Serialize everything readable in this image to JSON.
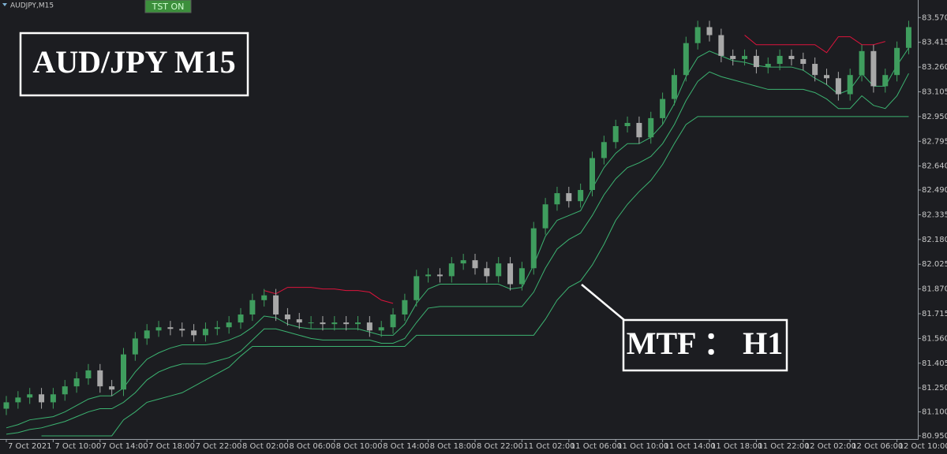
{
  "chart_data": {
    "type": "candlestick",
    "title": "AUDJPY,M15",
    "button": "TST ON",
    "annotations": [
      {
        "text": "AUD/JPY M15"
      },
      {
        "text": "MTF ： H1"
      }
    ],
    "up_color": "#3f9d5e",
    "down_color": "#a8a8a8",
    "categories": [
      "7 Oct 2021",
      null,
      null,
      null,
      "7 Oct 10:00",
      null,
      null,
      null,
      "7 Oct 14:00",
      null,
      null,
      null,
      "7 Oct 18:00",
      null,
      null,
      null,
      "7 Oct 22:00",
      null,
      null,
      null,
      "8 Oct 02:00",
      null,
      null,
      null,
      "8 Oct 06:00",
      null,
      null,
      null,
      "8 Oct 10:00",
      null,
      null,
      null,
      "8 Oct 14:00",
      null,
      null,
      null,
      "8 Oct 18:00",
      null,
      null,
      null,
      "8 Oct 22:00",
      null,
      null,
      null,
      "11 Oct 02:00",
      null,
      null,
      null,
      "11 Oct 06:00",
      null,
      null,
      null,
      "11 Oct 10:00",
      null,
      null,
      null,
      "11 Oct 14:00",
      null,
      null,
      null,
      "11 Oct 18:00",
      null,
      null,
      null,
      "11 Oct 22:00",
      null,
      null,
      null,
      "12 Oct 02:00",
      null,
      null,
      null,
      "12 Oct 06:00",
      null,
      null,
      null,
      "12 Oct 10:00",
      null
    ],
    "open": [
      81.12,
      81.16,
      81.19,
      81.21,
      81.16,
      81.21,
      81.26,
      81.31,
      81.36,
      81.26,
      81.24,
      81.46,
      81.56,
      81.61,
      81.63,
      81.62,
      81.61,
      81.58,
      81.62,
      81.63,
      81.66,
      81.71,
      81.8,
      81.83,
      81.71,
      81.68,
      81.66,
      81.66,
      81.65,
      81.66,
      81.65,
      81.66,
      81.61,
      81.63,
      81.71,
      81.8,
      81.95,
      81.96,
      81.95,
      82.03,
      82.05,
      82.0,
      81.95,
      82.03,
      81.9,
      82.0,
      82.25,
      82.4,
      82.47,
      82.42,
      82.49,
      82.69,
      82.79,
      82.89,
      82.91,
      82.82,
      82.94,
      83.06,
      83.21,
      83.41,
      83.51,
      83.46,
      83.33,
      83.31,
      83.33,
      83.26,
      83.28,
      83.33,
      83.31,
      83.28,
      83.21,
      83.19,
      83.09,
      83.21,
      83.36,
      83.14,
      83.21,
      83.38
    ],
    "high": [
      81.2,
      81.23,
      81.25,
      81.25,
      81.25,
      81.3,
      81.35,
      81.4,
      81.4,
      81.3,
      81.5,
      81.6,
      81.65,
      81.67,
      81.67,
      81.66,
      81.65,
      81.66,
      81.67,
      81.7,
      81.75,
      81.84,
      81.87,
      81.87,
      81.75,
      81.72,
      81.7,
      81.7,
      81.7,
      81.7,
      81.7,
      81.7,
      81.67,
      81.75,
      81.84,
      81.99,
      82.0,
      82.0,
      82.07,
      82.09,
      82.09,
      82.04,
      82.07,
      82.07,
      82.04,
      82.29,
      82.44,
      82.51,
      82.51,
      82.53,
      82.73,
      82.83,
      82.93,
      82.95,
      82.95,
      82.98,
      83.1,
      83.25,
      83.45,
      83.55,
      83.55,
      83.5,
      83.37,
      83.37,
      83.37,
      83.32,
      83.37,
      83.37,
      83.35,
      83.32,
      83.25,
      83.23,
      83.25,
      83.4,
      83.4,
      83.25,
      83.42,
      83.55
    ],
    "low": [
      81.08,
      81.12,
      81.15,
      81.12,
      81.12,
      81.17,
      81.22,
      81.27,
      81.22,
      81.2,
      81.2,
      81.42,
      81.52,
      81.57,
      81.58,
      81.57,
      81.54,
      81.54,
      81.58,
      81.59,
      81.62,
      81.67,
      81.76,
      81.67,
      81.64,
      81.62,
      81.62,
      81.61,
      81.61,
      81.61,
      81.61,
      81.57,
      81.57,
      81.59,
      81.67,
      81.76,
      81.91,
      81.91,
      81.91,
      81.99,
      81.96,
      81.91,
      81.91,
      81.86,
      81.86,
      81.96,
      82.21,
      82.36,
      82.38,
      82.38,
      82.45,
      82.65,
      82.75,
      82.85,
      82.78,
      82.78,
      82.9,
      83.02,
      83.17,
      83.37,
      83.42,
      83.29,
      83.27,
      83.27,
      83.22,
      83.22,
      83.24,
      83.27,
      83.24,
      83.17,
      83.15,
      83.05,
      83.05,
      83.17,
      83.1,
      83.1,
      83.17,
      83.34
    ],
    "close": [
      81.16,
      81.19,
      81.21,
      81.16,
      81.21,
      81.26,
      81.31,
      81.36,
      81.26,
      81.24,
      81.46,
      81.56,
      81.61,
      81.63,
      81.62,
      81.61,
      81.58,
      81.62,
      81.63,
      81.66,
      81.71,
      81.8,
      81.83,
      81.71,
      81.68,
      81.66,
      81.66,
      81.65,
      81.66,
      81.65,
      81.66,
      81.61,
      81.63,
      81.71,
      81.8,
      81.95,
      81.96,
      81.95,
      82.03,
      82.05,
      82.0,
      81.95,
      82.03,
      81.9,
      82.0,
      82.25,
      82.4,
      82.47,
      82.42,
      82.49,
      82.69,
      82.79,
      82.89,
      82.91,
      82.82,
      82.94,
      83.06,
      83.21,
      83.41,
      83.51,
      83.46,
      83.33,
      83.31,
      83.33,
      83.26,
      83.28,
      83.33,
      83.31,
      83.28,
      83.21,
      83.19,
      83.09,
      83.21,
      83.36,
      83.14,
      83.21,
      83.38,
      83.51
    ],
    "lines": [
      {
        "color": "#3cb371",
        "values": [
          81.0,
          81.02,
          81.05,
          81.06,
          81.07,
          81.1,
          81.14,
          81.18,
          81.2,
          81.2,
          81.25,
          81.35,
          81.43,
          81.47,
          81.5,
          81.52,
          81.52,
          81.52,
          81.53,
          81.55,
          81.58,
          81.63,
          81.7,
          81.69,
          81.65,
          81.63,
          81.62,
          81.62,
          81.62,
          81.62,
          81.62,
          81.6,
          81.58,
          81.58,
          81.65,
          81.78,
          81.87,
          81.9,
          81.9,
          81.9,
          81.9,
          81.9,
          81.9,
          81.87,
          81.88,
          82.02,
          82.2,
          82.3,
          82.33,
          82.36,
          82.5,
          82.63,
          82.72,
          82.78,
          82.78,
          82.82,
          82.9,
          83.03,
          83.2,
          83.32,
          83.36,
          83.33,
          83.3,
          83.29,
          83.27,
          83.26,
          83.26,
          83.26,
          83.24,
          83.19,
          83.15,
          83.09,
          83.12,
          83.22,
          83.14,
          83.14,
          83.27,
          83.38
        ]
      },
      {
        "color": "#3cb371",
        "values": [
          80.96,
          80.97,
          80.99,
          81.0,
          81.02,
          81.04,
          81.07,
          81.1,
          81.12,
          81.12,
          81.16,
          81.22,
          81.3,
          81.35,
          81.38,
          81.4,
          81.4,
          81.4,
          81.42,
          81.44,
          81.48,
          81.55,
          81.62,
          81.62,
          81.6,
          81.58,
          81.56,
          81.55,
          81.55,
          81.55,
          81.55,
          81.55,
          81.53,
          81.53,
          81.56,
          81.66,
          81.75,
          81.76,
          81.76,
          81.76,
          81.76,
          81.76,
          81.76,
          81.76,
          81.76,
          81.85,
          82.0,
          82.12,
          82.18,
          82.22,
          82.33,
          82.46,
          82.56,
          82.63,
          82.66,
          82.7,
          82.78,
          82.9,
          83.05,
          83.17,
          83.23,
          83.2,
          83.18,
          83.16,
          83.14,
          83.12,
          83.12,
          83.12,
          83.12,
          83.1,
          83.06,
          83.0,
          83.0,
          83.08,
          83.02,
          83.0,
          83.08,
          83.22
        ]
      },
      {
        "color": "#3cb371",
        "values": [
          null,
          null,
          null,
          80.95,
          80.95,
          80.95,
          80.95,
          80.95,
          80.95,
          80.95,
          81.05,
          81.1,
          81.16,
          81.18,
          81.2,
          81.22,
          81.26,
          81.3,
          81.34,
          81.38,
          81.45,
          81.51,
          81.51,
          81.51,
          81.51,
          81.51,
          81.51,
          81.51,
          81.51,
          81.51,
          81.51,
          81.51,
          81.51,
          81.51,
          81.51,
          81.58,
          81.58,
          81.58,
          81.58,
          81.58,
          81.58,
          81.58,
          81.58,
          81.58,
          81.58,
          81.58,
          81.68,
          81.8,
          81.88,
          81.92,
          82.02,
          82.15,
          82.3,
          82.4,
          82.48,
          82.55,
          82.65,
          82.78,
          82.9,
          82.95,
          82.95,
          82.95,
          82.95,
          82.95,
          82.95,
          82.95,
          82.95,
          82.95,
          82.95,
          82.95,
          82.95,
          82.95,
          82.95,
          82.95,
          82.95,
          82.95,
          82.95,
          82.95
        ]
      },
      {
        "color": "#dc143c",
        "values": [
          null,
          null,
          null,
          null,
          null,
          null,
          null,
          null,
          null,
          null,
          null,
          null,
          null,
          null,
          null,
          null,
          null,
          null,
          null,
          null,
          null,
          null,
          81.86,
          81.84,
          81.88,
          81.88,
          81.88,
          81.87,
          81.87,
          81.86,
          81.86,
          81.85,
          81.8,
          81.78,
          null,
          null,
          null,
          null,
          null,
          null,
          null,
          null,
          null,
          null,
          null,
          null,
          null,
          null,
          null,
          null,
          null,
          null,
          null,
          null,
          null,
          null,
          null,
          null,
          null,
          null,
          null,
          null,
          null,
          83.46,
          83.4,
          83.4,
          83.4,
          83.4,
          83.4,
          83.4,
          83.35,
          83.45,
          83.45,
          83.4,
          83.4,
          83.42,
          null,
          null
        ]
      }
    ],
    "ylim": [
      80.93,
      83.68
    ],
    "yticks": [
      {
        "value": 83.57,
        "label": "83.570"
      },
      {
        "value": 83.415,
        "label": "83.415"
      },
      {
        "value": 83.26,
        "label": "83.260"
      },
      {
        "value": 83.105,
        "label": "83.105"
      },
      {
        "value": 82.95,
        "label": "82.950"
      },
      {
        "value": 82.795,
        "label": "82.795"
      },
      {
        "value": 82.64,
        "label": "82.640"
      },
      {
        "value": 82.49,
        "label": "82.490"
      },
      {
        "value": 82.335,
        "label": "82.335"
      },
      {
        "value": 82.18,
        "label": "82.180"
      },
      {
        "value": 82.025,
        "label": "82.025"
      },
      {
        "value": 81.87,
        "label": "81.870"
      },
      {
        "value": 81.715,
        "label": "81.715"
      },
      {
        "value": 81.56,
        "label": "81.560"
      },
      {
        "value": 81.405,
        "label": "81.405"
      },
      {
        "value": 81.25,
        "label": "81.250"
      },
      {
        "value": 81.1,
        "label": "81.100"
      },
      {
        "value": 80.95,
        "label": "80.950"
      }
    ]
  }
}
